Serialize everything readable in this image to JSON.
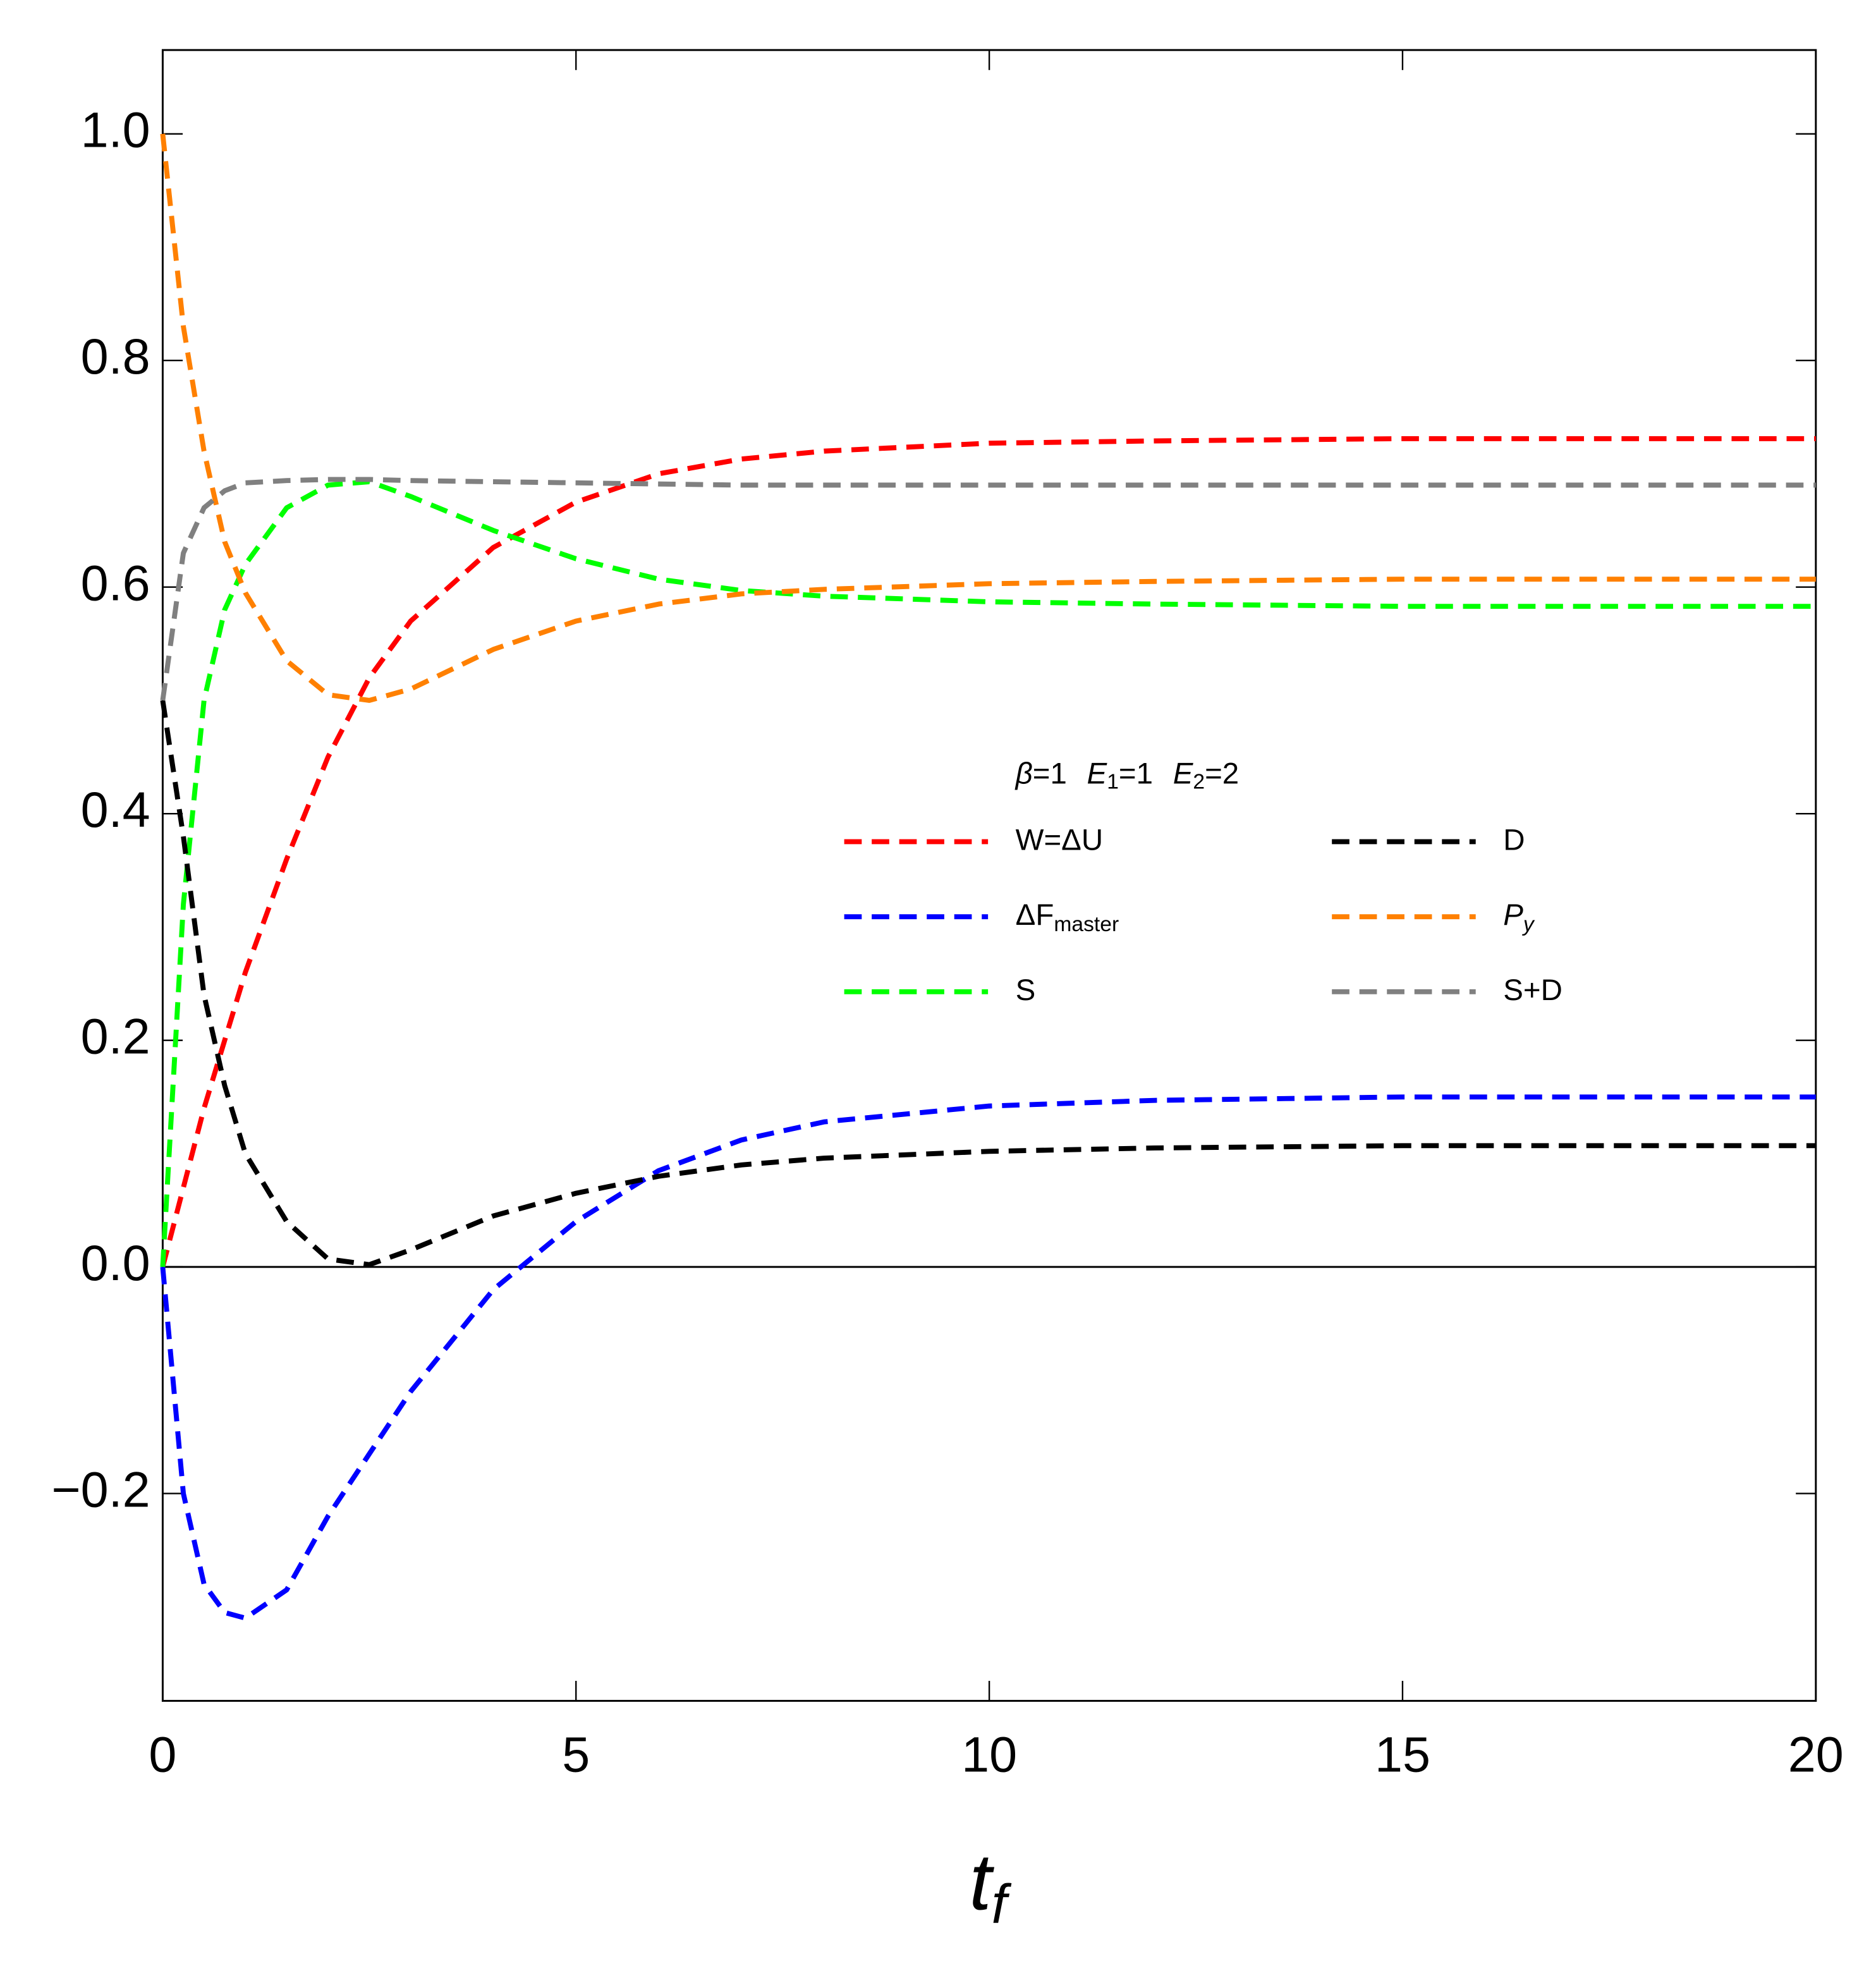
{
  "chart_data": {
    "type": "line",
    "xlabel": "t",
    "xlabel_subscript": "f",
    "annotation": [
      {
        "italic": "β",
        "text": "=1"
      },
      {
        "italic": "E",
        "sub": "1",
        "text": "=1"
      },
      {
        "italic": "E",
        "sub": "2",
        "text": "=2"
      }
    ],
    "x": [
      0,
      0.25,
      0.5,
      0.75,
      1,
      1.5,
      2,
      2.5,
      3,
      4,
      5,
      6,
      7,
      8,
      10,
      12,
      15,
      20
    ],
    "series": [
      {
        "name": "W=ΔU",
        "color": "#ff0000",
        "values": [
          0,
          0.07,
          0.14,
          0.2,
          0.26,
          0.36,
          0.45,
          0.52,
          0.57,
          0.635,
          0.675,
          0.7,
          0.713,
          0.72,
          0.727,
          0.729,
          0.731,
          0.731
        ]
      },
      {
        "name": "ΔF",
        "name_subscript": "master",
        "color": "#0000ff",
        "values": [
          0,
          -0.2,
          -0.28,
          -0.305,
          -0.31,
          -0.285,
          -0.22,
          -0.165,
          -0.11,
          -0.02,
          0.04,
          0.085,
          0.112,
          0.128,
          0.142,
          0.147,
          0.15,
          0.15
        ]
      },
      {
        "name": "S",
        "color": "#00ff00",
        "values": [
          0,
          0.32,
          0.5,
          0.58,
          0.62,
          0.67,
          0.69,
          0.693,
          0.68,
          0.65,
          0.625,
          0.607,
          0.597,
          0.592,
          0.587,
          0.585,
          0.583,
          0.583
        ]
      },
      {
        "name": "D",
        "color": "#000000",
        "values": [
          0.5,
          0.38,
          0.24,
          0.16,
          0.1,
          0.04,
          0.007,
          0.002,
          0.015,
          0.045,
          0.065,
          0.08,
          0.09,
          0.096,
          0.102,
          0.105,
          0.107,
          0.107
        ]
      },
      {
        "name": "P",
        "name_subscript": "y",
        "name_italic": true,
        "color": "#ff8000",
        "values": [
          1.0,
          0.83,
          0.72,
          0.64,
          0.595,
          0.535,
          0.505,
          0.5,
          0.51,
          0.545,
          0.57,
          0.585,
          0.594,
          0.598,
          0.603,
          0.605,
          0.607,
          0.607
        ]
      },
      {
        "name": "S+D",
        "color": "#808080",
        "values": [
          0.5,
          0.63,
          0.67,
          0.685,
          0.692,
          0.694,
          0.695,
          0.695,
          0.694,
          0.693,
          0.692,
          0.691,
          0.69,
          0.69,
          0.69,
          0.69,
          0.69,
          0.69
        ]
      }
    ],
    "xlim": [
      0,
      20
    ],
    "xticks": [
      0,
      5,
      10,
      15,
      20
    ],
    "ylim": [
      -0.383,
      1.074
    ],
    "yticks": [
      {
        "value": -0.2,
        "label": "−0.2"
      },
      {
        "value": 0,
        "label": "0.0"
      },
      {
        "value": 0.2,
        "label": "0.2"
      },
      {
        "value": 0.4,
        "label": "0.4"
      },
      {
        "value": 0.6,
        "label": "0.6"
      },
      {
        "value": 0.8,
        "label": "0.8"
      },
      {
        "value": 1.0,
        "label": "1.0"
      }
    ],
    "zero_line": true,
    "grid": false,
    "legend_columns": 2,
    "dashed": true
  }
}
